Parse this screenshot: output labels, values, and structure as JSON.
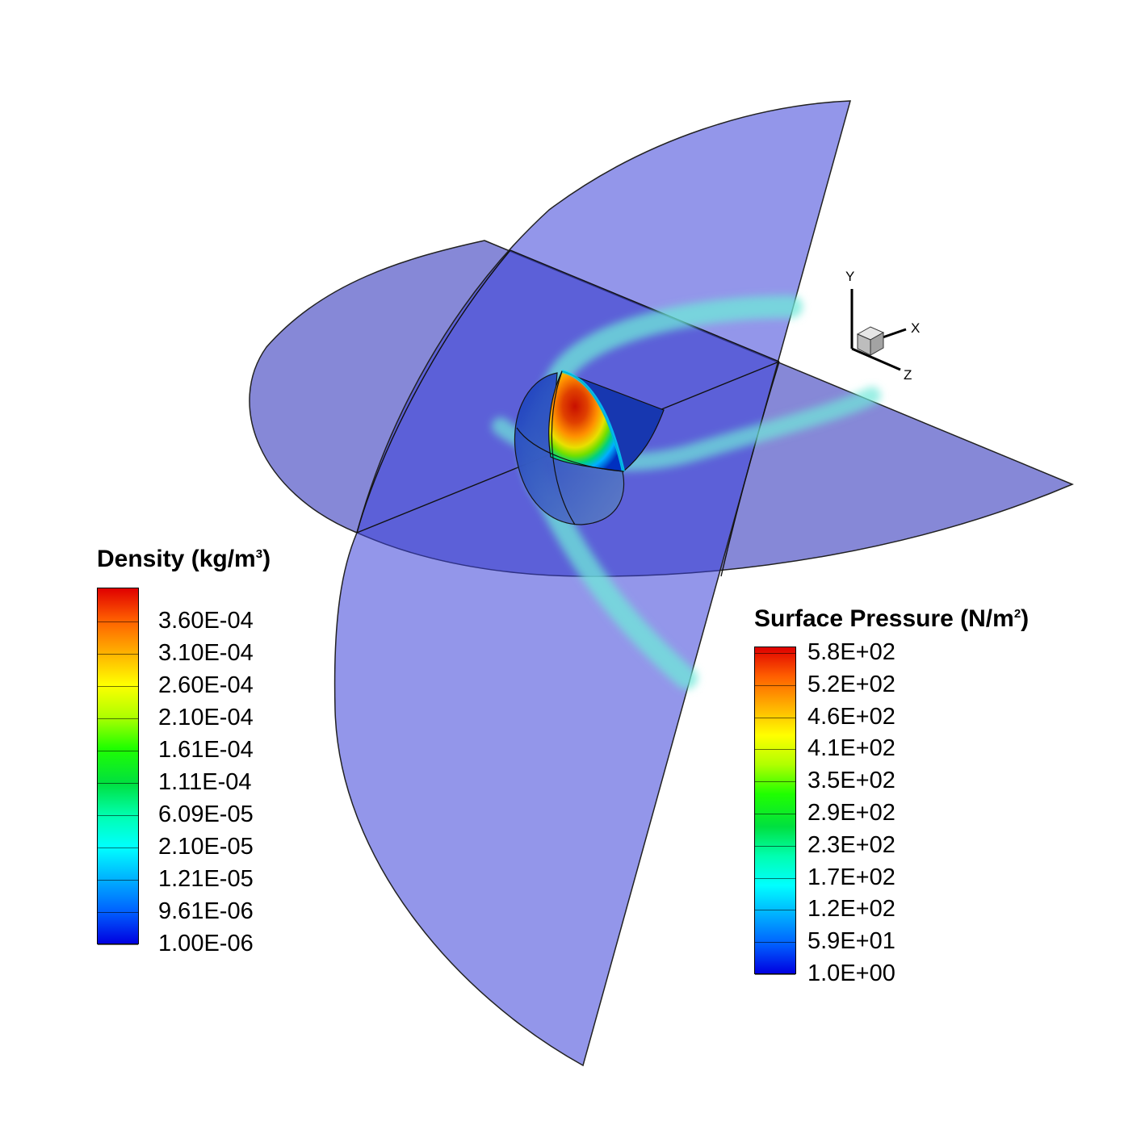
{
  "density_legend": {
    "title": "Density (kg/m",
    "title_sup": "3",
    "title_close": ")",
    "ticks": [
      "3.60E-04",
      "3.10E-04",
      "2.60E-04",
      "2.10E-04",
      "1.61E-04",
      "1.11E-04",
      "6.09E-05",
      "2.10E-05",
      "1.21E-05",
      "9.61E-06",
      "1.00E-06"
    ]
  },
  "pressure_legend": {
    "title": "Surface Pressure (N/m",
    "title_sup": "2",
    "title_close": ")",
    "ticks": [
      "5.8E+02",
      "5.2E+02",
      "4.6E+02",
      "4.1E+02",
      "3.5E+02",
      "2.9E+02",
      "2.3E+02",
      "1.7E+02",
      "1.2E+02",
      "5.9E+01",
      "1.0E+00"
    ]
  },
  "axes_triad": {
    "x": "X",
    "y": "Y",
    "z": "Z"
  },
  "colormap": [
    "#0000e0",
    "#0060ff",
    "#00b0ff",
    "#00ffff",
    "#00ffb0",
    "#00e040",
    "#20ff00",
    "#b0ff00",
    "#ffff00",
    "#ffb000",
    "#ff6000",
    "#e00000"
  ]
}
